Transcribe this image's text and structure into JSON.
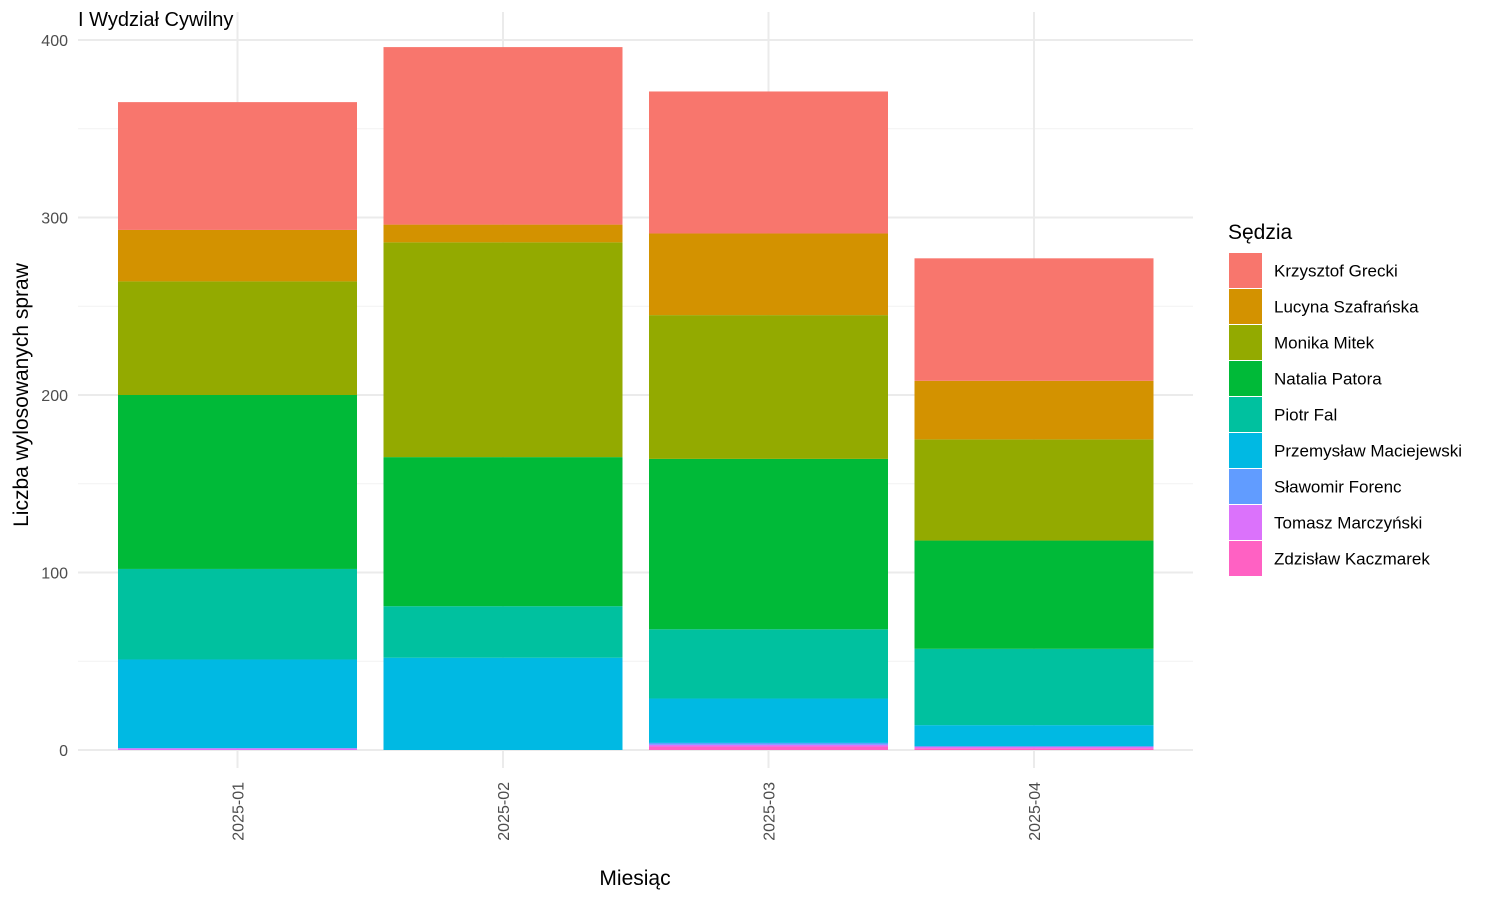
{
  "chart_data": {
    "type": "bar",
    "stacked": true,
    "title": "I Wydział Cywilny",
    "xlabel": "Miesiąc",
    "ylabel": "Liczba wylosowanych spraw",
    "ylim": [
      0,
      400
    ],
    "y_ticks": [
      "0",
      "100",
      "200",
      "300",
      "400"
    ],
    "categories": [
      "2025-01",
      "2025-02",
      "2025-03",
      "2025-04"
    ],
    "grid": true,
    "legend": {
      "title": "Sędzia",
      "placement": "right"
    },
    "series": [
      {
        "name": "Krzysztof Grecki",
        "color": "#F8766D",
        "values": [
          72,
          100,
          80,
          69
        ]
      },
      {
        "name": "Lucyna Szafrańska",
        "color": "#D39200",
        "values": [
          29,
          10,
          46,
          33
        ]
      },
      {
        "name": "Monika Mitek",
        "color": "#93AA00",
        "values": [
          64,
          121,
          81,
          57
        ]
      },
      {
        "name": "Natalia Patora",
        "color": "#00BA38",
        "values": [
          98,
          84,
          96,
          61
        ]
      },
      {
        "name": "Piotr Fal",
        "color": "#00C19F",
        "values": [
          51,
          29,
          39,
          43
        ]
      },
      {
        "name": "Przemysław Maciejewski",
        "color": "#00B9E3",
        "values": [
          50,
          52,
          25,
          12
        ]
      },
      {
        "name": "Sławomir Forenc",
        "color": "#619CFF",
        "values": [
          0,
          0,
          1,
          0
        ]
      },
      {
        "name": "Tomasz Marczyński",
        "color": "#DB72FB",
        "values": [
          1,
          0,
          1,
          1
        ]
      },
      {
        "name": "Zdzisław Kaczmarek",
        "color": "#FF61C3",
        "values": [
          0,
          0,
          2,
          1
        ]
      }
    ]
  }
}
